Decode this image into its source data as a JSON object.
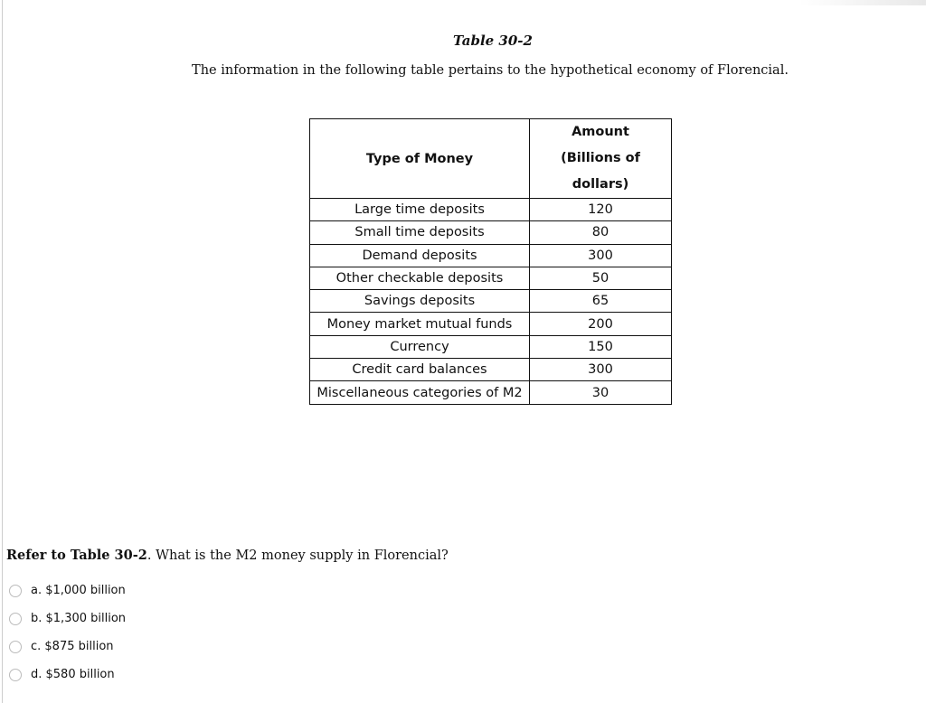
{
  "title": "Table 30-2",
  "intro": "The information in the following table pertains to the hypothetical economy of Florencial.",
  "table": {
    "headers": {
      "type": "Type of Money",
      "amount_line1": "Amount",
      "amount_line2": "(Billions of dollars)"
    },
    "rows": [
      {
        "type": "Large time deposits",
        "amount": "120"
      },
      {
        "type": "Small time deposits",
        "amount": "80"
      },
      {
        "type": "Demand deposits",
        "amount": "300"
      },
      {
        "type": "Other checkable deposits",
        "amount": "50"
      },
      {
        "type": "Savings deposits",
        "amount": "65"
      },
      {
        "type": "Money market mutual funds",
        "amount": "200"
      },
      {
        "type": "Currency",
        "amount": "150"
      },
      {
        "type": "Credit card balances",
        "amount": "300"
      },
      {
        "type": "Miscellaneous categories of M2",
        "amount": "30"
      }
    ]
  },
  "question": {
    "ref": "Refer to Table 30-2",
    "text": ". What is the M2 money supply in Florencial?"
  },
  "options": [
    "a. $1,000 billion",
    "b. $1,300 billion",
    "c. $875 billion",
    "d. $580 billion"
  ]
}
